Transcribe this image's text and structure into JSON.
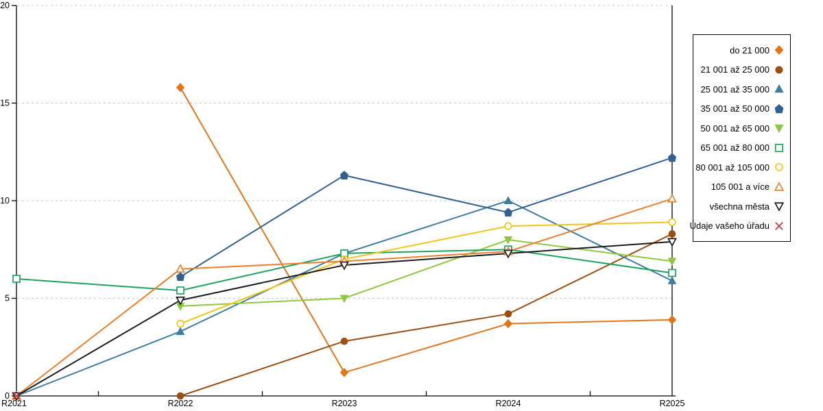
{
  "chart_data": {
    "type": "line",
    "title": "",
    "xlabel": "",
    "ylabel": "",
    "categories": [
      "R2021",
      "R2022",
      "R2023",
      "R2024",
      "R2025"
    ],
    "yticks": [
      0,
      5,
      10,
      15,
      20
    ],
    "ylim": [
      0,
      20
    ],
    "grid": "horizontal-dashed",
    "grid_color": "#c4c4c4",
    "axis_color": "#000000",
    "legend_position": "right-outside",
    "series": [
      {
        "name": "do 21 000",
        "marker": "diamond",
        "fill": "filled",
        "color": "#E2751A",
        "values": [
          null,
          15.8,
          1.2,
          3.7,
          3.9
        ]
      },
      {
        "name": "21 001 až 25 000",
        "marker": "circle",
        "fill": "filled",
        "color": "#9C4F0E",
        "values": [
          null,
          0,
          2.8,
          4.2,
          8.3
        ]
      },
      {
        "name": "25 001 až 35 000",
        "marker": "triangle-up",
        "fill": "filled",
        "color": "#3D7EA0",
        "values": [
          0,
          3.3,
          7.3,
          10,
          5.9
        ]
      },
      {
        "name": "35 001 až 50 000",
        "marker": "pentagon",
        "fill": "filled",
        "color": "#33608D",
        "values": [
          null,
          6.1,
          11.3,
          9.4,
          12.2
        ]
      },
      {
        "name": "50 001 až 65 000",
        "marker": "triangle-down",
        "fill": "filled",
        "color": "#8FC73F",
        "values": [
          null,
          4.6,
          5.0,
          8.0,
          6.9
        ]
      },
      {
        "name": "65 001 až 80 000",
        "marker": "square",
        "fill": "hollow",
        "color": "#1BA35F",
        "values": [
          6.0,
          5.4,
          7.3,
          7.5,
          6.3
        ]
      },
      {
        "name": "80 001 až 105 000",
        "marker": "circle",
        "fill": "hollow",
        "color": "#F2C414",
        "values": [
          null,
          3.7,
          7.0,
          8.7,
          8.9
        ]
      },
      {
        "name": "105 001 a více",
        "marker": "triangle-up",
        "fill": "hollow",
        "color": "#ED7D2B",
        "values": [
          0,
          6.5,
          6.9,
          7.4,
          10.1
        ]
      },
      {
        "name": "všechna města",
        "marker": "triangle-down",
        "fill": "hollow",
        "color": "#1A1A1A",
        "values": [
          0,
          4.9,
          6.7,
          7.3,
          7.9
        ]
      },
      {
        "name": "Údaje vašeho úřadu",
        "marker": "x",
        "fill": "hollow",
        "color": "#C93535",
        "values": [
          0,
          null,
          null,
          null,
          null
        ]
      }
    ]
  }
}
